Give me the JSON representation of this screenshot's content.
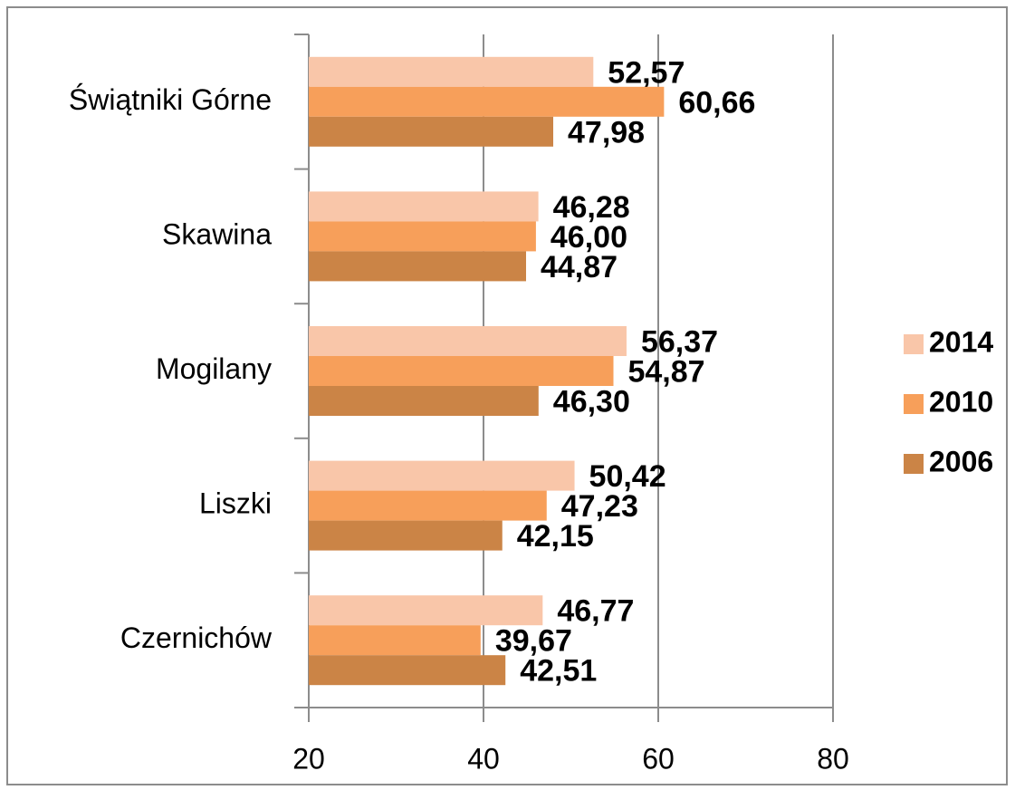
{
  "chart_data": {
    "type": "barh",
    "categories": [
      "Świątniki Górne",
      "Skawina",
      "Mogilany",
      "Liszki",
      "Czernichów"
    ],
    "series": [
      {
        "name": "2014",
        "color": "#f9c6a9",
        "values": [
          52.57,
          46.28,
          56.37,
          50.42,
          46.77
        ],
        "value_labels": [
          "52,57",
          "46,28",
          "56,37",
          "50,42",
          "46,77"
        ]
      },
      {
        "name": "2010",
        "color": "#f79f5a",
        "values": [
          60.66,
          46.0,
          54.87,
          47.23,
          39.67
        ],
        "value_labels": [
          "60,66",
          "46,00",
          "54,87",
          "47,23",
          "39,67"
        ]
      },
      {
        "name": "2006",
        "color": "#cb8446",
        "values": [
          47.98,
          44.87,
          46.3,
          42.15,
          42.51
        ],
        "value_labels": [
          "47,98",
          "44,87",
          "46,30",
          "42,15",
          "42,51"
        ]
      }
    ],
    "xlim": [
      20,
      80
    ],
    "xticks": [
      20,
      40,
      60,
      80
    ],
    "grid": true,
    "legend": "right"
  }
}
